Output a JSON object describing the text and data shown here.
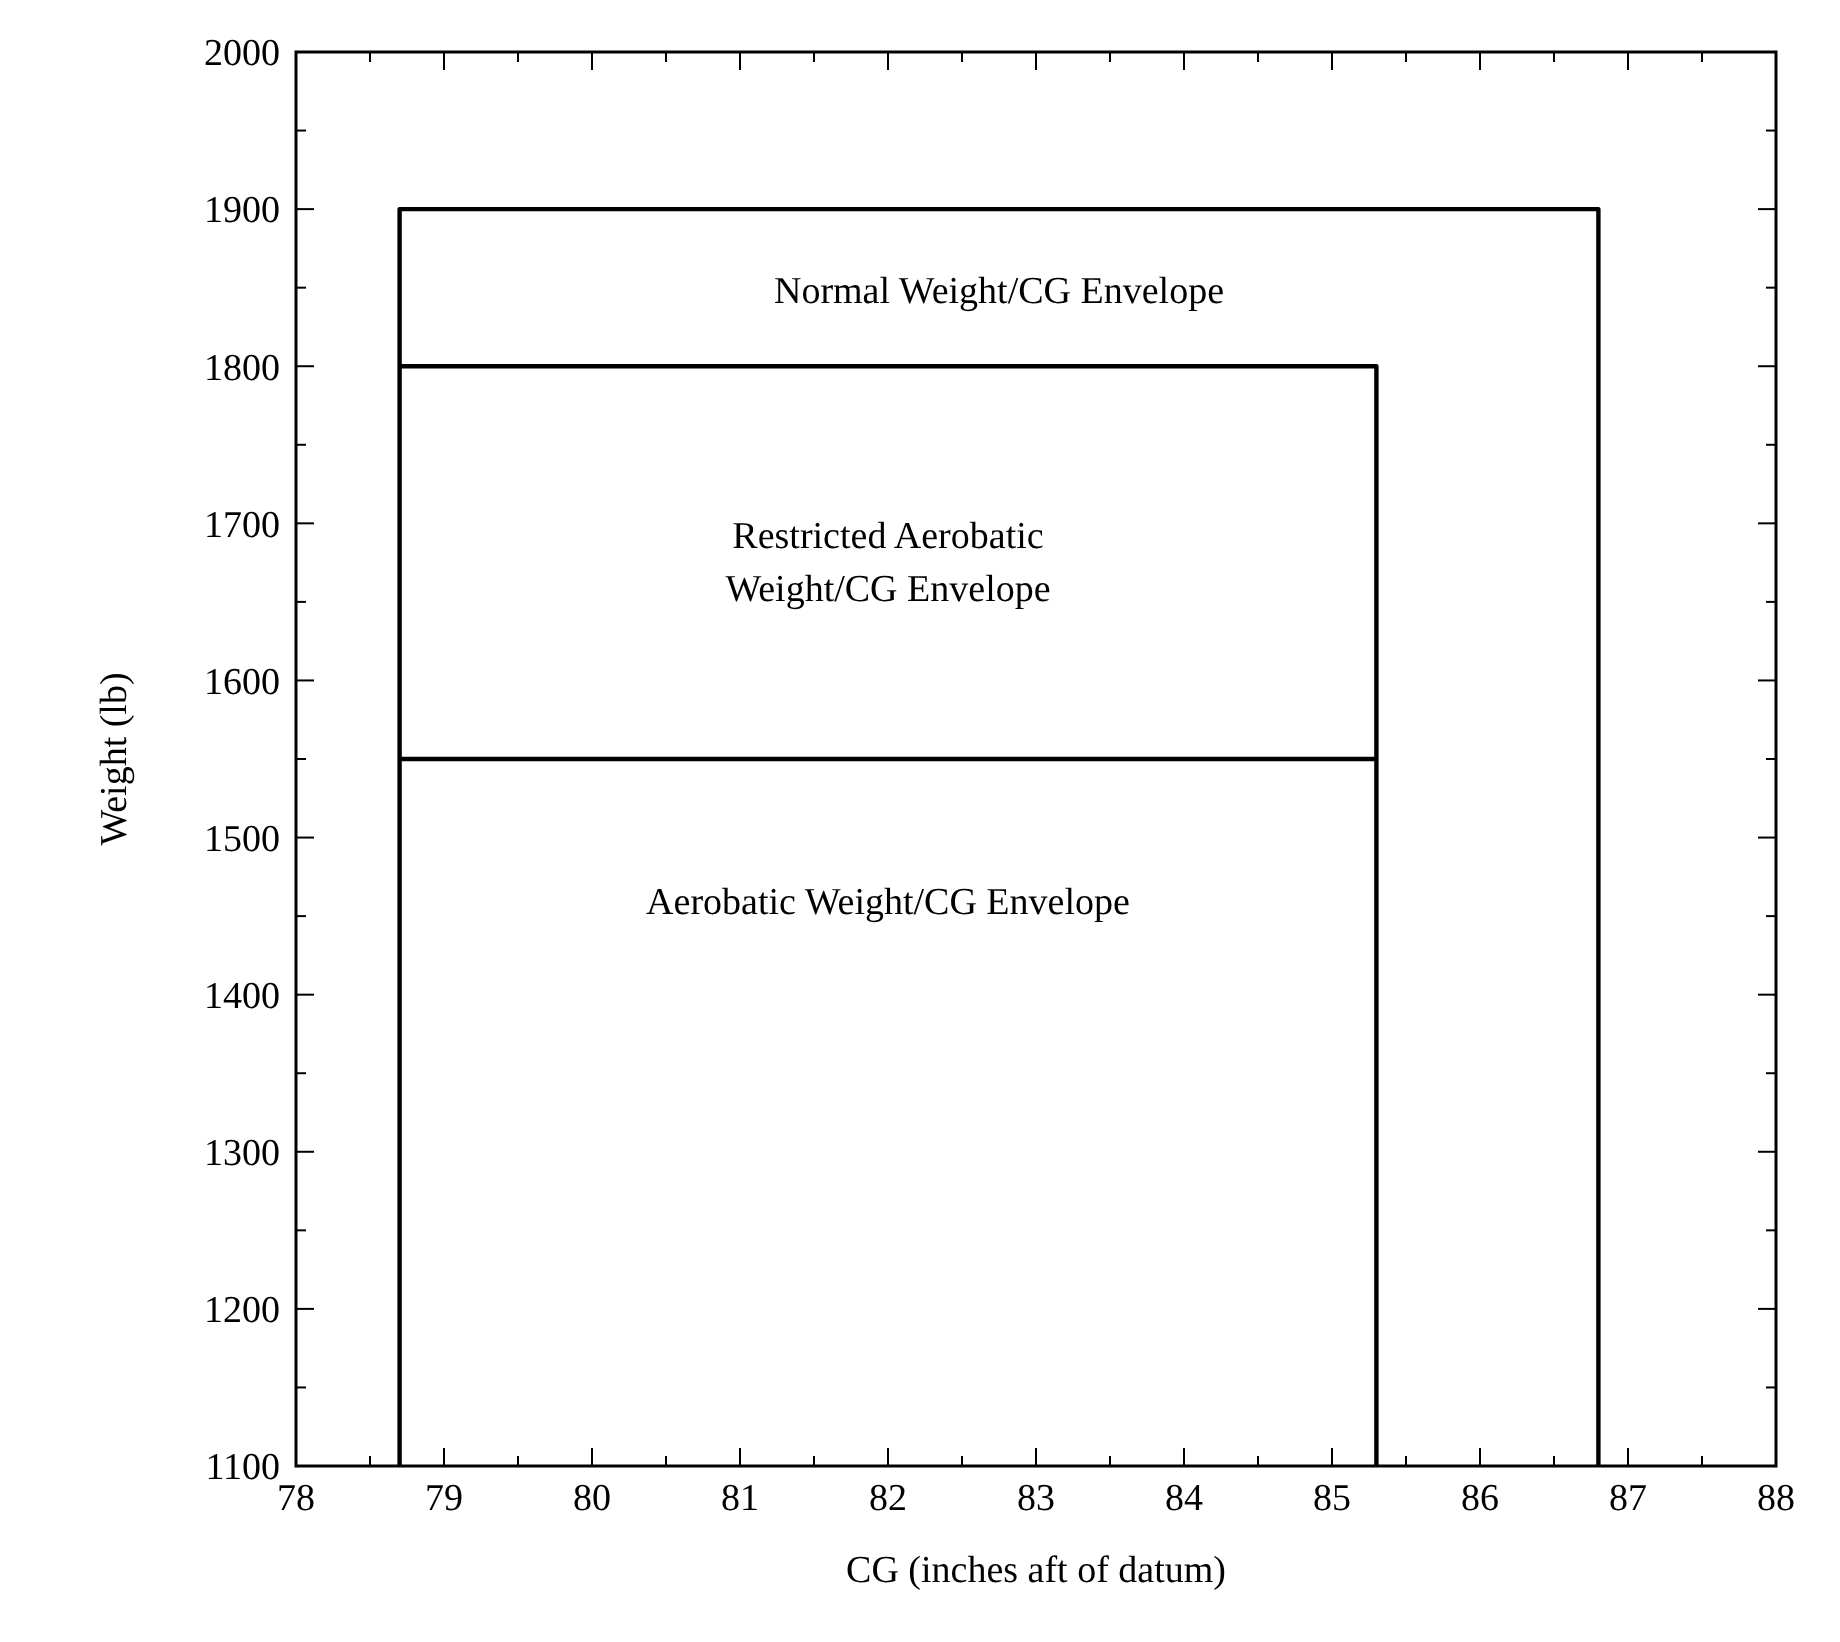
{
  "chart_data": {
    "type": "line",
    "xlabel": "CG (inches aft of datum)",
    "ylabel": "Weight (lb)",
    "xlim": [
      78,
      88
    ],
    "ylim": [
      1100,
      2000
    ],
    "xticks": [
      78,
      {
        "value": 78.5,
        "label": null
      },
      79,
      {
        "value": 79.5,
        "label": null
      },
      80,
      {
        "value": 80.5,
        "label": null
      },
      81,
      {
        "value": 81.5,
        "label": null
      },
      82,
      {
        "value": 82.5,
        "label": null
      },
      83,
      {
        "value": 83.5,
        "label": null
      },
      84,
      {
        "value": 84.5,
        "label": null
      },
      85,
      {
        "value": 85.5,
        "label": null
      },
      86,
      {
        "value": 86.5,
        "label": null
      },
      87,
      {
        "value": 87.5,
        "label": null
      },
      88
    ],
    "yticks": [
      1100,
      {
        "value": 1150,
        "label": null
      },
      1200,
      {
        "value": 1250,
        "label": null
      },
      1300,
      {
        "value": 1350,
        "label": null
      },
      1400,
      {
        "value": 1450,
        "label": null
      },
      1500,
      {
        "value": 1550,
        "label": null
      },
      1600,
      {
        "value": 1650,
        "label": null
      },
      1700,
      {
        "value": 1750,
        "label": null
      },
      1800,
      {
        "value": 1850,
        "label": null
      },
      1900,
      {
        "value": 1950,
        "label": null
      },
      2000
    ],
    "grid": false,
    "marker": "none",
    "line_style": "solid",
    "series": [
      {
        "color": "#000000",
        "x": [
          78.7,
          78.7,
          86.8,
          86.8
        ],
        "values": [
          1100,
          1900,
          1900,
          1100
        ]
      },
      {
        "color": "#000000",
        "x": [
          78.7,
          85.3,
          85.3
        ],
        "values": [
          1800,
          1800,
          1100
        ]
      },
      {
        "color": "#000000",
        "x": [
          78.7,
          85.3
        ],
        "values": [
          1550,
          1550
        ]
      }
    ],
    "annotations": [
      "Normal Weight/CG Envelope",
      "Restricted Aerobatic\nWeight/CG Envelope",
      "Aerobatic Weight/CG Envelope"
    ]
  }
}
